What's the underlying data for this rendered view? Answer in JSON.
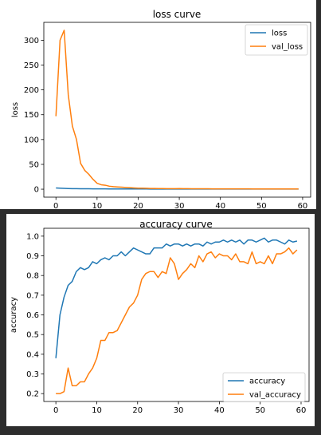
{
  "chart_data": [
    {
      "type": "line",
      "title": "loss curve",
      "xlabel": "",
      "ylabel": "loss",
      "xlim": [
        -2.95,
        61.95
      ],
      "ylim": [
        -16,
        336
      ],
      "xticks": [
        "0",
        "10",
        "20",
        "30",
        "40",
        "50",
        "60"
      ],
      "xtick_values": [
        0,
        10,
        20,
        30,
        40,
        50,
        60
      ],
      "yticks": [
        "0",
        "50",
        "100",
        "150",
        "200",
        "250",
        "300"
      ],
      "ytick_values": [
        0,
        50,
        100,
        150,
        200,
        250,
        300
      ],
      "legend": "top-right",
      "grid": false,
      "series": [
        {
          "name": "loss",
          "color": "#1f77b4",
          "x": [
            0,
            1,
            2,
            3,
            4,
            5,
            6,
            7,
            8,
            9,
            10,
            11,
            12,
            13,
            14,
            15,
            16,
            17,
            18,
            19,
            20,
            21,
            22,
            23,
            24,
            25,
            26,
            27,
            28,
            29,
            30,
            31,
            32,
            33,
            34,
            35,
            36,
            37,
            38,
            39,
            40,
            41,
            42,
            43,
            44,
            45,
            46,
            47,
            48,
            49,
            50,
            51,
            52,
            53,
            54,
            55,
            56,
            57,
            58,
            59
          ],
          "y": [
            2.5,
            2.0,
            1.6,
            1.3,
            1.1,
            1.0,
            0.9,
            0.85,
            0.8,
            0.75,
            0.7,
            0.65,
            0.6,
            0.55,
            0.52,
            0.5,
            0.48,
            0.46,
            0.44,
            0.42,
            0.4,
            0.39,
            0.38,
            0.37,
            0.36,
            0.35,
            0.34,
            0.33,
            0.32,
            0.31,
            0.3,
            0.3,
            0.3,
            0.3,
            0.3,
            0.3,
            0.3,
            0.3,
            0.3,
            0.3,
            0.3,
            0.3,
            0.3,
            0.3,
            0.3,
            0.3,
            0.3,
            0.3,
            0.3,
            0.3,
            0.3,
            0.3,
            0.3,
            0.3,
            0.3,
            0.3,
            0.3,
            0.3,
            0.3,
            0.3
          ]
        },
        {
          "name": "val_loss",
          "color": "#ff7f0e",
          "x": [
            0,
            1,
            2,
            3,
            4,
            5,
            6,
            7,
            8,
            9,
            10,
            11,
            12,
            13,
            14,
            15,
            16,
            17,
            18,
            19,
            20,
            21,
            22,
            23,
            24,
            25,
            26,
            27,
            28,
            29,
            30,
            31,
            32,
            33,
            34,
            35,
            36,
            37,
            38,
            39,
            40,
            41,
            42,
            43,
            44,
            45,
            46,
            47,
            48,
            49,
            50,
            51,
            52,
            53,
            54,
            55,
            56,
            57,
            58,
            59
          ],
          "y": [
            147,
            300,
            320,
            190,
            127,
            100,
            52,
            38,
            30,
            20,
            12,
            9,
            8,
            6,
            5,
            4.5,
            4,
            3.5,
            3,
            2.5,
            2,
            2,
            1.8,
            1.5,
            1.5,
            1.3,
            1.2,
            1.1,
            1,
            1,
            1.2,
            1,
            1,
            0.9,
            0.9,
            0.8,
            0.8,
            0.8,
            0.7,
            0.7,
            0.7,
            0.7,
            0.6,
            0.6,
            0.6,
            0.6,
            0.6,
            0.6,
            0.5,
            0.5,
            0.5,
            0.5,
            0.5,
            0.5,
            0.5,
            0.5,
            0.5,
            0.5,
            0.5,
            0.5
          ]
        }
      ]
    },
    {
      "type": "line",
      "title": "accuracy curve",
      "xlabel": "",
      "ylabel": "accuracy",
      "xlim": [
        -2.95,
        61.95
      ],
      "ylim": [
        0.16,
        1.04
      ],
      "xticks": [
        "0",
        "10",
        "20",
        "30",
        "40",
        "50",
        "60"
      ],
      "xtick_values": [
        0,
        10,
        20,
        30,
        40,
        50,
        60
      ],
      "yticks": [
        "0.2",
        "0.3",
        "0.4",
        "0.5",
        "0.6",
        "0.7",
        "0.8",
        "0.9",
        "1.0"
      ],
      "ytick_values": [
        0.2,
        0.3,
        0.4,
        0.5,
        0.6,
        0.7,
        0.8,
        0.9,
        1.0
      ],
      "legend": "bottom-right",
      "grid": false,
      "series": [
        {
          "name": "accuracy",
          "color": "#1f77b4",
          "x": [
            0,
            1,
            2,
            3,
            4,
            5,
            6,
            7,
            8,
            9,
            10,
            11,
            12,
            13,
            14,
            15,
            16,
            17,
            18,
            19,
            20,
            21,
            22,
            23,
            24,
            25,
            26,
            27,
            28,
            29,
            30,
            31,
            32,
            33,
            34,
            35,
            36,
            37,
            38,
            39,
            40,
            41,
            42,
            43,
            44,
            45,
            46,
            47,
            48,
            49,
            50,
            51,
            52,
            53,
            54,
            55,
            56,
            57,
            58,
            59
          ],
          "y": [
            0.38,
            0.6,
            0.69,
            0.75,
            0.77,
            0.82,
            0.84,
            0.83,
            0.84,
            0.87,
            0.86,
            0.88,
            0.89,
            0.88,
            0.9,
            0.9,
            0.92,
            0.9,
            0.92,
            0.94,
            0.93,
            0.92,
            0.91,
            0.91,
            0.94,
            0.94,
            0.94,
            0.96,
            0.95,
            0.96,
            0.96,
            0.95,
            0.96,
            0.95,
            0.96,
            0.96,
            0.95,
            0.97,
            0.96,
            0.97,
            0.97,
            0.98,
            0.97,
            0.98,
            0.97,
            0.98,
            0.96,
            0.98,
            0.98,
            0.97,
            0.98,
            0.99,
            0.97,
            0.98,
            0.98,
            0.97,
            0.96,
            0.98,
            0.97,
            0.975
          ]
        },
        {
          "name": "val_accuracy",
          "color": "#ff7f0e",
          "x": [
            0,
            1,
            2,
            3,
            4,
            5,
            6,
            7,
            8,
            9,
            10,
            11,
            12,
            13,
            14,
            15,
            16,
            17,
            18,
            19,
            20,
            21,
            22,
            23,
            24,
            25,
            26,
            27,
            28,
            29,
            30,
            31,
            32,
            33,
            34,
            35,
            36,
            37,
            38,
            39,
            40,
            41,
            42,
            43,
            44,
            45,
            46,
            47,
            48,
            49,
            50,
            51,
            52,
            53,
            54,
            55,
            56,
            57,
            58,
            59
          ],
          "y": [
            0.2,
            0.2,
            0.21,
            0.33,
            0.24,
            0.24,
            0.26,
            0.26,
            0.3,
            0.33,
            0.38,
            0.47,
            0.47,
            0.51,
            0.51,
            0.52,
            0.56,
            0.6,
            0.64,
            0.66,
            0.7,
            0.78,
            0.81,
            0.82,
            0.82,
            0.79,
            0.82,
            0.81,
            0.89,
            0.86,
            0.78,
            0.81,
            0.83,
            0.86,
            0.84,
            0.9,
            0.87,
            0.91,
            0.92,
            0.89,
            0.91,
            0.9,
            0.9,
            0.88,
            0.91,
            0.87,
            0.87,
            0.86,
            0.92,
            0.86,
            0.87,
            0.86,
            0.9,
            0.86,
            0.91,
            0.91,
            0.92,
            0.94,
            0.91,
            0.93
          ]
        }
      ]
    }
  ]
}
